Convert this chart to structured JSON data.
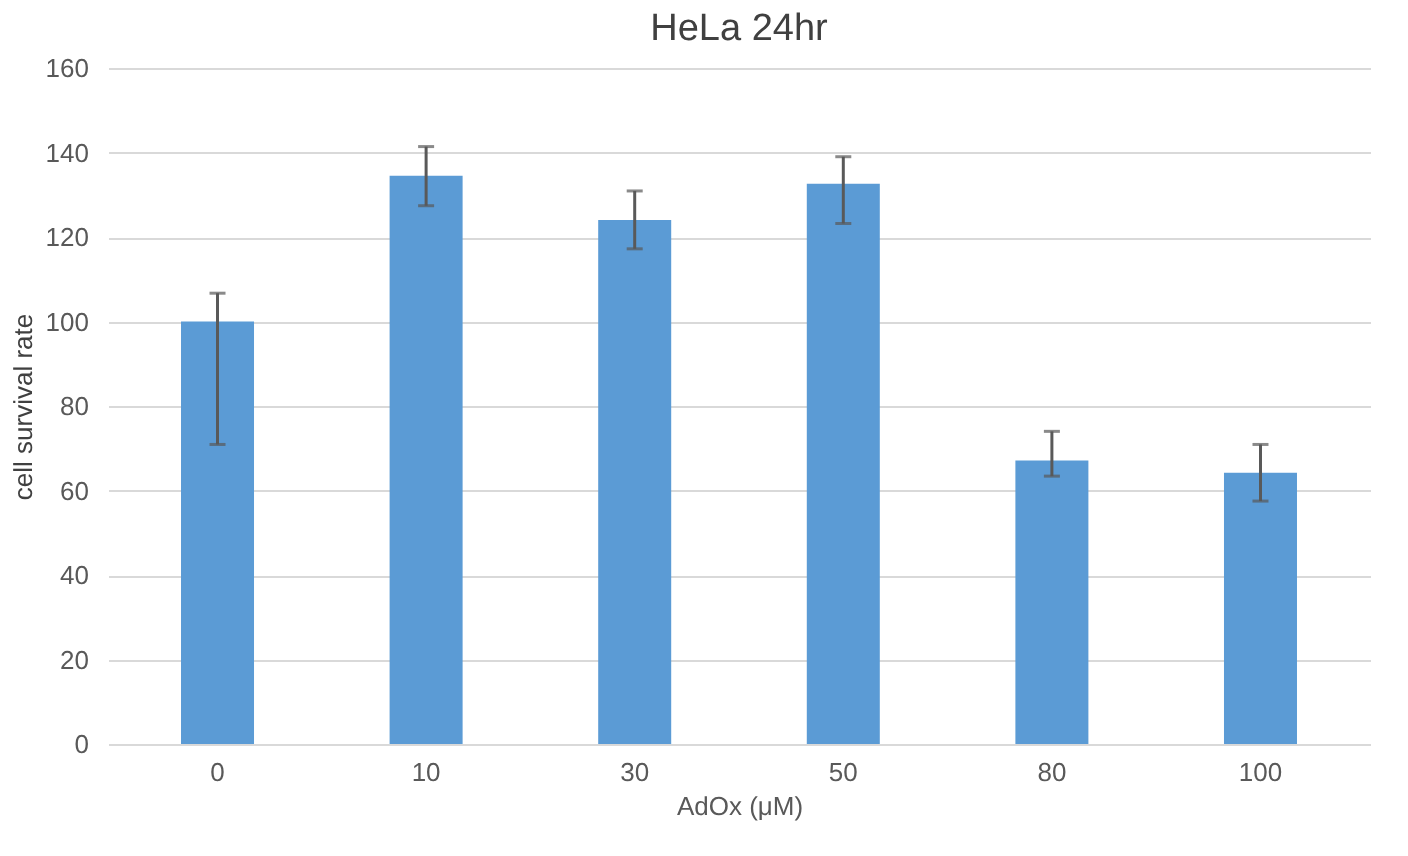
{
  "chart_data": {
    "type": "bar",
    "title": "HeLa 24hr",
    "xlabel": "AdOx (μM)",
    "ylabel": "cell survival rate",
    "categories": [
      "0",
      "10",
      "30",
      "50",
      "80",
      "100"
    ],
    "values": [
      100,
      134.5,
      124,
      132.6,
      67.1,
      64.2
    ],
    "errors": [
      [
        70.9,
        106.7
      ],
      [
        127.4,
        141.4
      ],
      [
        117.2,
        130.9
      ],
      [
        123.2,
        139
      ],
      [
        63.4,
        74
      ],
      [
        57.5,
        70.9
      ]
    ],
    "color": "#5b9bd5",
    "ylim": [
      0,
      160
    ],
    "yticks": [
      0,
      20,
      40,
      60,
      80,
      100,
      120,
      140,
      160
    ],
    "grid": "y"
  }
}
